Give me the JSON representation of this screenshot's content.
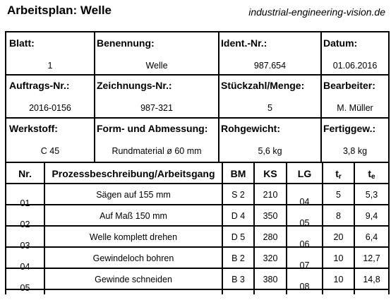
{
  "title": "Arbeitsplan: Welle",
  "website": "industrial-engineering-vision.de",
  "header": {
    "blatt": {
      "label": "Blatt:",
      "value": "1"
    },
    "benennung": {
      "label": "Benennung:",
      "value": "Welle"
    },
    "ident": {
      "label": "Ident.-Nr.:",
      "value": "987.654"
    },
    "datum": {
      "label": "Datum:",
      "value": "01.06.2016"
    },
    "auftrag": {
      "label": "Auftrags-Nr.:",
      "value": "2016-0156"
    },
    "zeichnung": {
      "label": "Zeichnungs-Nr.:",
      "value": "987-321"
    },
    "stueck": {
      "label": "Stückzahl/Menge:",
      "value": "5"
    },
    "bearbeiter": {
      "label": "Bearbeiter:",
      "value": "M. Müller"
    },
    "werkstoff": {
      "label": "Werkstoff:",
      "value": "C 45"
    },
    "form": {
      "label": "Form- und Abmessung:",
      "value": "Rundmaterial ø 60 mm"
    },
    "rohgewicht": {
      "label": "Rohgewicht:",
      "value": "5,6 kg"
    },
    "fertiggew": {
      "label": "Fertiggew.:",
      "value": "3,8 kg"
    }
  },
  "table": {
    "columns": {
      "nr": "Nr.",
      "desc": "Prozessbeschreibung/Arbeitsgang",
      "bm": "BM",
      "ks": "KS",
      "lg": "LG",
      "tr": "t",
      "tr_sub": "r",
      "te": "t",
      "te_sub": "e"
    },
    "rows": [
      {
        "nr": "01",
        "desc": "Sägen auf 155 mm",
        "bm": "S 2",
        "ks": "210",
        "lg": "04",
        "tr": "5",
        "te": "5,3"
      },
      {
        "nr": "02",
        "desc": "Auf Maß 150 mm",
        "bm": "D 4",
        "ks": "350",
        "lg": "05",
        "tr": "8",
        "te": "9,4"
      },
      {
        "nr": "03",
        "desc": "Welle komplett drehen",
        "bm": "D 5",
        "ks": "280",
        "lg": "06",
        "tr": "20",
        "te": "6,4"
      },
      {
        "nr": "04",
        "desc": "Gewindeloch bohren",
        "bm": "B 2",
        "ks": "320",
        "lg": "07",
        "tr": "10",
        "te": "12,7"
      },
      {
        "nr": "05",
        "desc": "Gewinde schneiden",
        "bm": "B 3",
        "ks": "380",
        "lg": "08",
        "tr": "10",
        "te": "14,8"
      }
    ]
  }
}
